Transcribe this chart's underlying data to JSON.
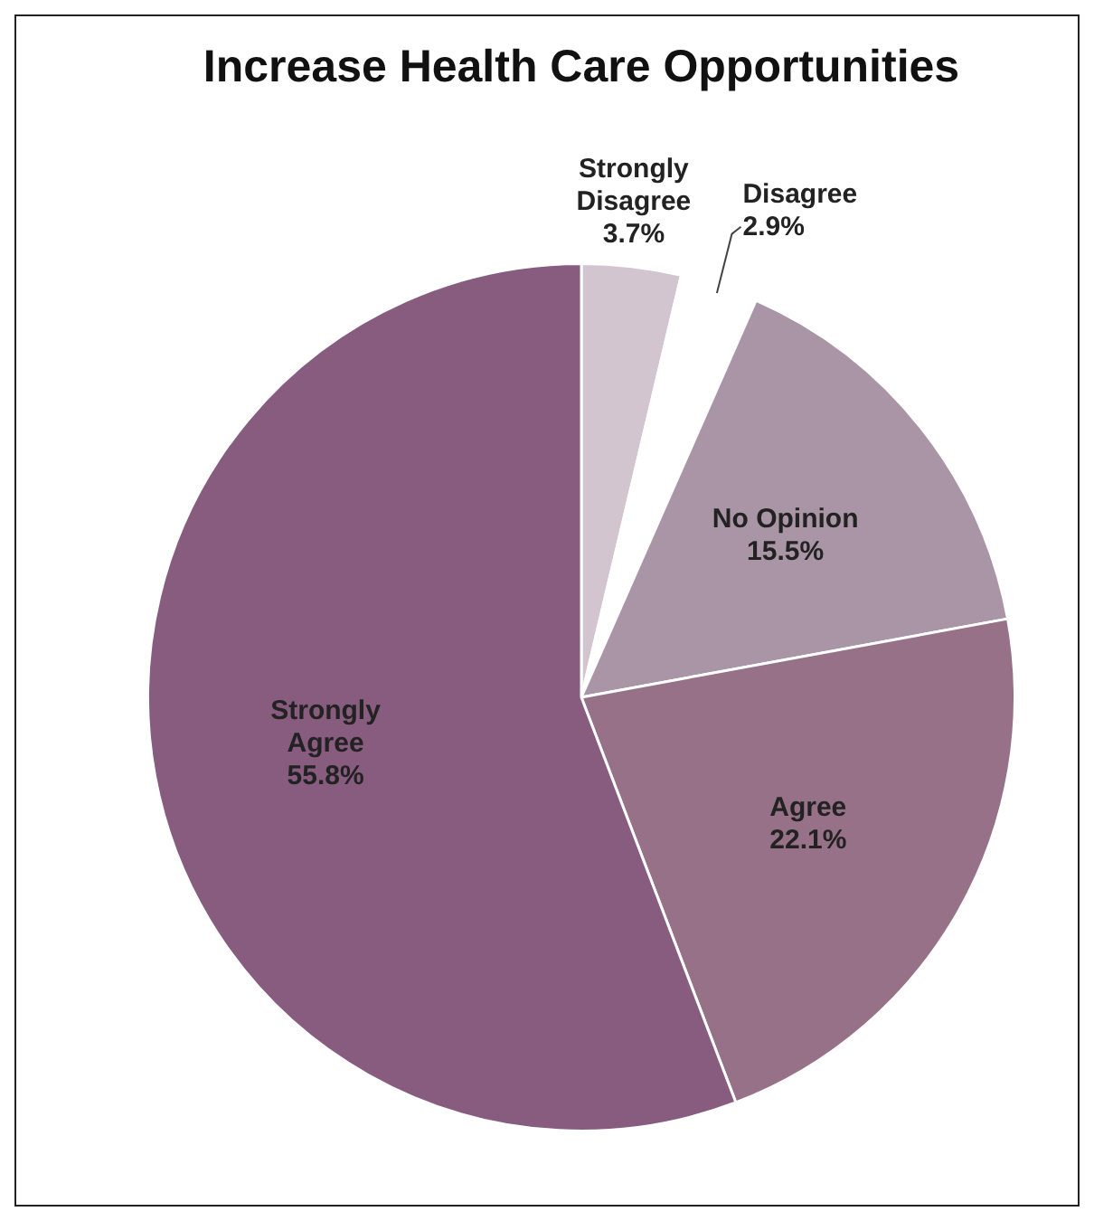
{
  "chart_data": {
    "type": "pie",
    "title": "Increase Health Care Opportunities",
    "categories": [
      "Strongly Disagree",
      "Disagree",
      "No Opinion",
      "Agree",
      "Strongly Agree"
    ],
    "values": [
      3.7,
      2.9,
      15.5,
      22.1,
      55.8
    ],
    "value_labels": [
      "3.7%",
      "2.9%",
      "15.5%",
      "22.1%",
      "55.8%"
    ],
    "colors": [
      "#d3c5d0",
      "#ffffff",
      "#a995a5",
      "#977188",
      "#875c7e"
    ],
    "legend": false
  }
}
